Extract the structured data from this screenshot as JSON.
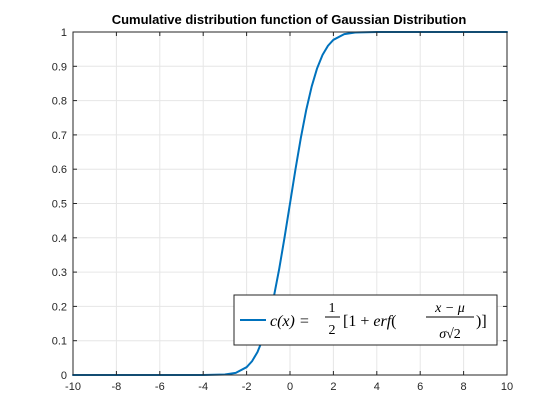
{
  "chart_data": {
    "type": "line",
    "title": "Cumulative distribution function of Gaussian Distribution",
    "xlabel": "",
    "ylabel": "",
    "xlim": [
      -10,
      10
    ],
    "ylim": [
      0,
      1
    ],
    "xticks": [
      -10,
      -8,
      -6,
      -4,
      -2,
      0,
      2,
      4,
      6,
      8,
      10
    ],
    "yticks": [
      0,
      0.1,
      0.2,
      0.3,
      0.4,
      0.5,
      0.6,
      0.7,
      0.8,
      0.9,
      1
    ],
    "grid": true,
    "legend_position": "bottom-right",
    "series": [
      {
        "name": "c(x) = 1/2 [1 + erf((x − μ)/(σ√2))]",
        "color": "#0072BD",
        "x": [
          -10,
          -9,
          -8,
          -7,
          -6,
          -5,
          -4,
          -3,
          -2.5,
          -2,
          -1.75,
          -1.5,
          -1.25,
          -1,
          -0.75,
          -0.5,
          -0.25,
          0,
          0.25,
          0.5,
          0.75,
          1,
          1.25,
          1.5,
          1.75,
          2,
          2.5,
          3,
          4,
          5,
          6,
          7,
          8,
          9,
          10
        ],
        "y": [
          0,
          0,
          0,
          0,
          0,
          0,
          0,
          0.0013,
          0.0062,
          0.0228,
          0.0401,
          0.0668,
          0.1056,
          0.1587,
          0.2266,
          0.3085,
          0.4013,
          0.5,
          0.5987,
          0.6915,
          0.7734,
          0.8413,
          0.8944,
          0.9332,
          0.9599,
          0.9772,
          0.9938,
          0.9987,
          1,
          1,
          1,
          1,
          1,
          1,
          1
        ]
      }
    ]
  }
}
